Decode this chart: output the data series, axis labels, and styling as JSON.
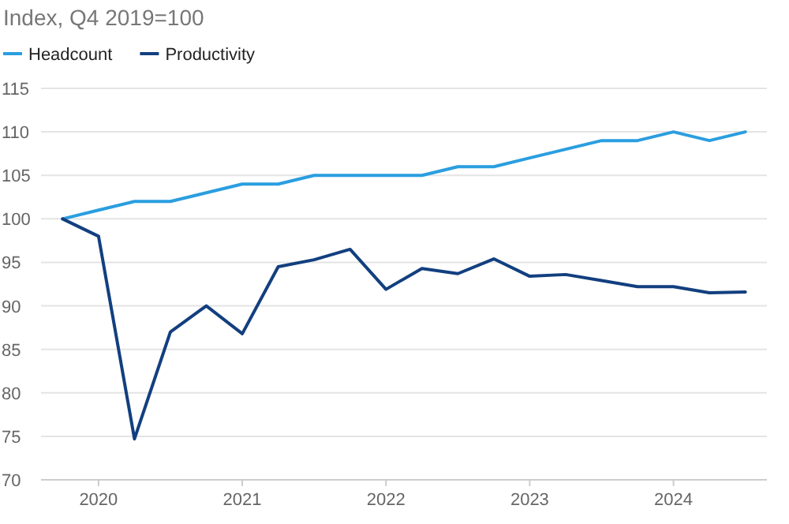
{
  "chart_data": {
    "type": "line",
    "title": "Index, Q4 2019=100",
    "x": [
      2019.75,
      2020,
      2020.25,
      2020.5,
      2020.75,
      2021,
      2021.25,
      2021.5,
      2021.75,
      2022,
      2022.25,
      2022.5,
      2022.75,
      2023,
      2023.25,
      2023.5,
      2023.75,
      2024,
      2024.25,
      2024.5
    ],
    "series": [
      {
        "name": "Headcount",
        "color": "#2a9ee0",
        "values": [
          100,
          101,
          102,
          102,
          103,
          104,
          104,
          105,
          105,
          105,
          105,
          106,
          106,
          107,
          108,
          109,
          109,
          110,
          109,
          110
        ]
      },
      {
        "name": "Productivity",
        "color": "#123f7f",
        "values": [
          100,
          98,
          74.7,
          87,
          90,
          86.8,
          94.5,
          95.3,
          96.5,
          91.9,
          94.3,
          93.7,
          95.4,
          93.4,
          93.6,
          92.9,
          92.2,
          92.2,
          91.5,
          91.6
        ]
      }
    ],
    "xlim": [
      2019.6,
      2024.65
    ],
    "xticks": [
      2020,
      2021,
      2022,
      2023,
      2024
    ],
    "ylim": [
      70,
      115
    ],
    "yticks": [
      70,
      75,
      80,
      85,
      90,
      95,
      100,
      105,
      110,
      115
    ],
    "grid": "y",
    "legend": "top left",
    "line_style": "solid"
  }
}
